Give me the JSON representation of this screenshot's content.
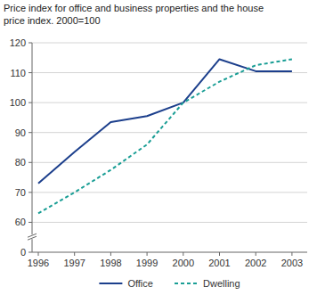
{
  "chart_data": {
    "type": "line",
    "title": "Price index for office and business properties and the house price index. 2000=100",
    "categories": [
      "1996",
      "1997",
      "1998",
      "1999",
      "2000",
      "2001",
      "2002",
      "2003"
    ],
    "series": [
      {
        "name": "Office",
        "color": "#1c3f8c",
        "line_style": "solid",
        "values": [
          73,
          83.5,
          93.5,
          95.5,
          100,
          114.5,
          110.5,
          110.5
        ]
      },
      {
        "name": "Dwelling",
        "color": "#1a9e95",
        "line_style": "dashed",
        "values": [
          63,
          70,
          77.5,
          86,
          100,
          107,
          112.5,
          114.5
        ]
      }
    ],
    "ylim": [
      0,
      120
    ],
    "yticks": [
      0,
      60,
      70,
      80,
      90,
      100,
      110,
      120
    ],
    "grid": true,
    "legend": "bottom"
  }
}
